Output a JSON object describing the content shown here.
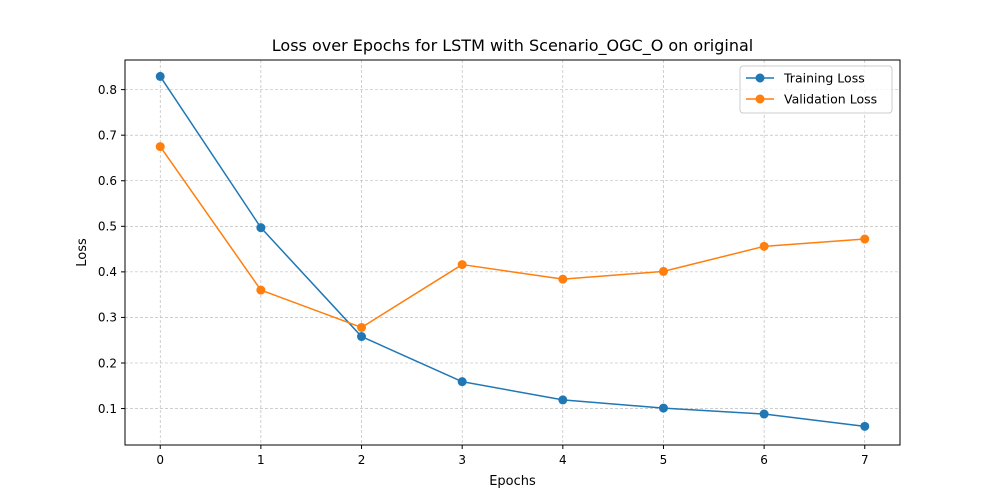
{
  "chart_data": {
    "type": "line",
    "title": "Loss over Epochs for LSTM with Scenario_OGC_O on original",
    "xlabel": "Epochs",
    "ylabel": "Loss",
    "x": [
      0,
      1,
      2,
      3,
      4,
      5,
      6,
      7
    ],
    "xticks": [
      "0",
      "1",
      "2",
      "3",
      "4",
      "5",
      "6",
      "7"
    ],
    "yticks": [
      "0.1",
      "0.2",
      "0.3",
      "0.4",
      "0.5",
      "0.6",
      "0.7",
      "0.8"
    ],
    "xlim": [
      -0.35,
      7.35
    ],
    "ylim": [
      0.02,
      0.865
    ],
    "grid": true,
    "legend_position": "top-right",
    "series": [
      {
        "name": "Training Loss",
        "color": "#1f77b4",
        "marker": "circle",
        "values": [
          0.829,
          0.497,
          0.258,
          0.159,
          0.119,
          0.101,
          0.088,
          0.061
        ]
      },
      {
        "name": "Validation Loss",
        "color": "#ff7f0e",
        "marker": "circle",
        "values": [
          0.675,
          0.36,
          0.278,
          0.416,
          0.384,
          0.401,
          0.456,
          0.472
        ]
      }
    ]
  }
}
